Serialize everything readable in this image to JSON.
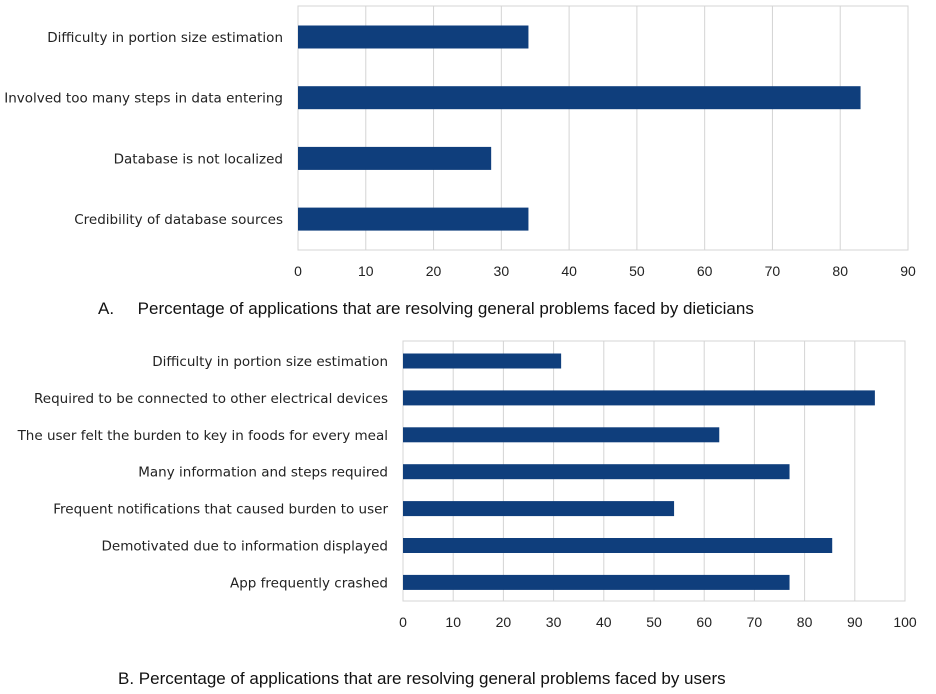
{
  "bar_color": "#0f3e7c",
  "chart_data": [
    {
      "type": "bar",
      "orientation": "horizontal",
      "caption": "A.     Percentage of applications that are resolving general problems faced by dieticians",
      "categories": [
        "Difficulty in portion size estimation",
        "Involved too many steps in data entering",
        "Database is not localized",
        "Credibility of database sources"
      ],
      "values": [
        34,
        83,
        28.5,
        34
      ],
      "xlim": [
        0,
        90
      ],
      "xticks": [
        0,
        10,
        20,
        30,
        40,
        50,
        60,
        70,
        80,
        90
      ],
      "grid": true
    },
    {
      "type": "bar",
      "orientation": "horizontal",
      "caption": "B. Percentage of applications that are resolving general problems faced by users",
      "categories": [
        "Difficulty in portion size estimation",
        "Required to be connected to other electrical devices",
        "The user felt the burden to key in foods for every meal",
        "Many information and steps required",
        "Frequent notifications that caused burden to user",
        "Demotivated due to information displayed",
        "App frequently crashed"
      ],
      "values": [
        31.5,
        94,
        63,
        77,
        54,
        85.5,
        77
      ],
      "xlim": [
        0,
        100
      ],
      "xticks": [
        0,
        10,
        20,
        30,
        40,
        50,
        60,
        70,
        80,
        90,
        100
      ],
      "grid": true
    }
  ]
}
